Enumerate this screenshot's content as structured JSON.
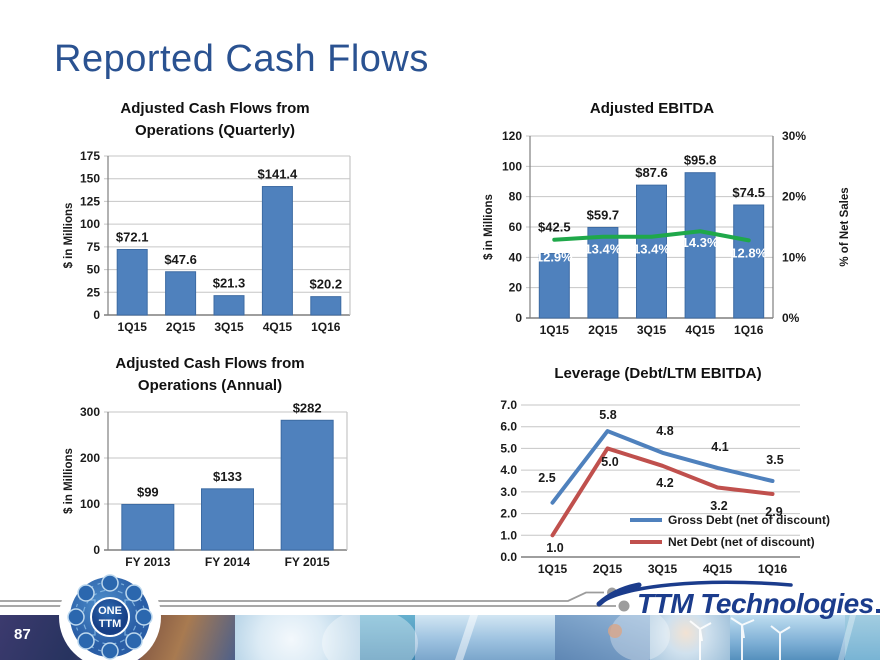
{
  "slide": {
    "title": "Reported Cash Flows",
    "page_number": "87",
    "logo": {
      "text": "TTM Technologies"
    },
    "badge": {
      "line1": "ONE",
      "line2": "TTM"
    }
  },
  "colors": {
    "title_blue": "#2a5291",
    "bar_blue": "#4f81bd",
    "bar_border": "#3d6ba3",
    "line_green": "#1fa84a",
    "line_blue": "#4f81bd",
    "line_red": "#c0504d",
    "grid_gray": "#c6c6c6",
    "axis_gray": "#7f7f7f",
    "logo_blue": "#1b3c8c"
  },
  "chart_data": [
    {
      "id": "cash-flows-quarterly",
      "type": "bar",
      "title_lines": [
        "Adjusted Cash Flows from",
        "Operations (Quarterly)"
      ],
      "ylabel": "$ in Millions",
      "categories": [
        "1Q15",
        "2Q15",
        "3Q15",
        "4Q15",
        "1Q16"
      ],
      "values": [
        72.1,
        47.6,
        21.3,
        141.4,
        20.2
      ],
      "value_labels": [
        "$72.1",
        "$47.6",
        "$21.3",
        "$141.4",
        "$20.2"
      ],
      "ylim": [
        0,
        175
      ],
      "yticks": [
        0,
        25,
        50,
        75,
        100,
        125,
        150,
        175
      ],
      "grid": true,
      "bar_color": "#4f81bd"
    },
    {
      "id": "adjusted-ebitda",
      "type": "bar+line",
      "title_lines": [
        "Adjusted EBITDA"
      ],
      "ylabel": "$ in Millions",
      "y2label": "% of Net Sales",
      "categories": [
        "1Q15",
        "2Q15",
        "3Q15",
        "4Q15",
        "1Q16"
      ],
      "series": [
        {
          "name": "Adjusted EBITDA ($ in Millions)",
          "type": "bar",
          "axis": "left",
          "values": [
            42.5,
            59.7,
            87.6,
            95.8,
            74.5
          ],
          "labels": [
            "$42.5",
            "$59.7",
            "$87.6",
            "$95.8",
            "$74.5"
          ],
          "color": "#4f81bd"
        },
        {
          "name": "% of Net Sales",
          "type": "line",
          "axis": "right",
          "values": [
            12.9,
            13.4,
            13.4,
            14.3,
            12.8
          ],
          "labels": [
            "12.9%",
            "13.4%",
            "13.4%",
            "14.3%",
            "12.8%"
          ],
          "color": "#1fa84a"
        }
      ],
      "ylim": [
        0,
        120
      ],
      "yticks": [
        0,
        20,
        40,
        60,
        80,
        100,
        120
      ],
      "y2lim": [
        0,
        30
      ],
      "y2ticks": [
        "0%",
        "10%",
        "20%",
        "30%"
      ],
      "grid": true
    },
    {
      "id": "cash-flows-annual",
      "type": "bar",
      "title_lines": [
        "Adjusted Cash Flows from",
        "Operations (Annual)"
      ],
      "ylabel": "$ in Millions",
      "categories": [
        "FY 2013",
        "FY 2014",
        "FY 2015"
      ],
      "values": [
        99,
        133,
        282
      ],
      "value_labels": [
        "$99",
        "$133",
        "$282"
      ],
      "ylim": [
        0,
        300
      ],
      "yticks": [
        0,
        100,
        200,
        300
      ],
      "grid": true,
      "bar_color": "#4f81bd"
    },
    {
      "id": "leverage",
      "type": "line",
      "title_lines": [
        "Leverage (Debt/LTM EBITDA)"
      ],
      "categories": [
        "1Q15",
        "2Q15",
        "3Q15",
        "4Q15",
        "1Q16"
      ],
      "series": [
        {
          "name": "Gross Debt (net of discount)",
          "values": [
            2.5,
            5.8,
            4.8,
            4.1,
            3.5
          ],
          "labels": [
            "2.5",
            "5.8",
            "4.8",
            "4.1",
            "3.5"
          ],
          "color": "#4f81bd"
        },
        {
          "name": "Net Debt (net of discount)",
          "values": [
            1.0,
            5.0,
            4.2,
            3.2,
            2.9
          ],
          "labels": [
            "1.0",
            "5.0",
            "4.2",
            "3.2",
            "2.9"
          ],
          "color": "#c0504d"
        }
      ],
      "ylim": [
        0,
        7
      ],
      "yticks": [
        "0.0",
        "1.0",
        "2.0",
        "3.0",
        "4.0",
        "5.0",
        "6.0",
        "7.0"
      ],
      "legend": [
        "Gross Debt (net of discount)",
        "Net Debt (net of discount)"
      ],
      "legend_position": "inside-right",
      "grid": true
    }
  ]
}
